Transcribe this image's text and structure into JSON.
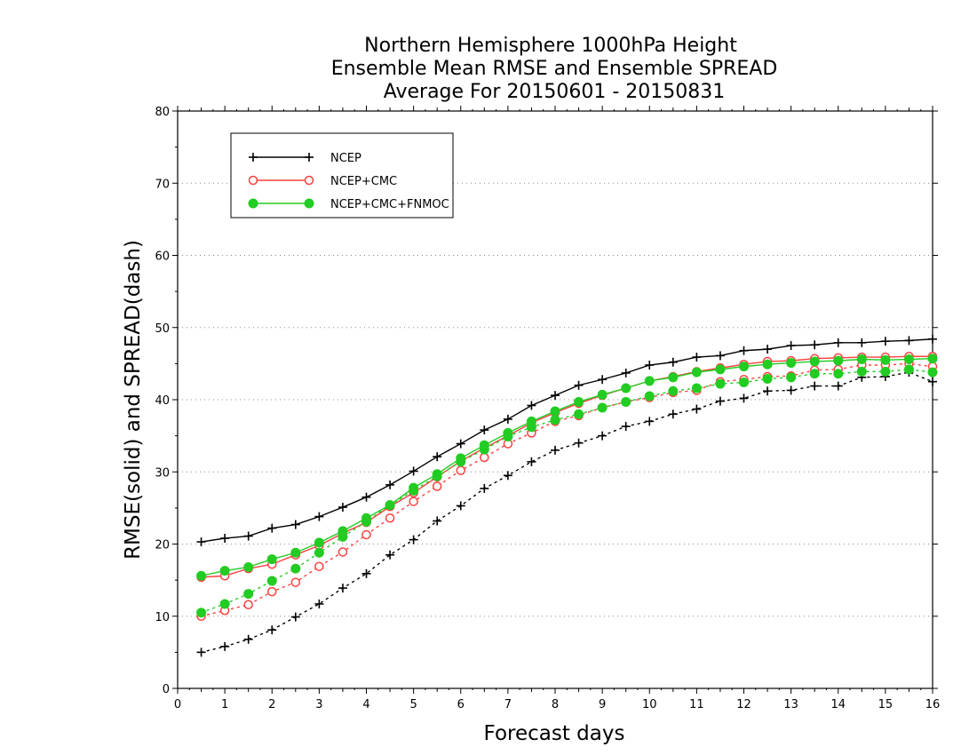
{
  "chart_data": {
    "type": "line",
    "title": [
      "Northern Hemisphere 1000hPa Height",
      "Ensemble Mean RMSE and Ensemble SPREAD",
      "Average For 20150601 - 20150831"
    ],
    "xlabel": "Forecast days",
    "ylabel": "RMSE(solid) and SPREAD(dash)",
    "xlim": [
      0,
      16
    ],
    "ylim": [
      0,
      80
    ],
    "xticks": [
      "0",
      "1",
      "2",
      "3",
      "4",
      "5",
      "6",
      "7",
      "8",
      "9",
      "10",
      "11",
      "12",
      "13",
      "14",
      "15",
      "16"
    ],
    "yticks": [
      "0",
      "10",
      "20",
      "30",
      "40",
      "50",
      "60",
      "70",
      "80"
    ],
    "grid": "horizontal dotted",
    "legend_position": "top-left",
    "x": [
      0.5,
      1,
      1.5,
      2,
      2.5,
      3,
      3.5,
      4,
      4.5,
      5,
      5.5,
      6,
      6.5,
      7,
      7.5,
      8,
      8.5,
      9,
      9.5,
      10,
      10.5,
      11,
      11.5,
      12,
      12.5,
      13,
      13.5,
      14,
      14.5,
      15,
      15.5,
      16
    ],
    "series": [
      {
        "name": "NCEP",
        "color": "#000000",
        "marker": "plus",
        "rmse": [
          20.3,
          20.8,
          21.1,
          22.2,
          22.7,
          23.8,
          25.1,
          26.5,
          28.2,
          30.1,
          32.1,
          33.9,
          35.8,
          37.3,
          39.2,
          40.6,
          42.0,
          42.8,
          43.7,
          44.8,
          45.2,
          45.9,
          46.1,
          46.8,
          47.0,
          47.5,
          47.6,
          47.9,
          47.9,
          48.1,
          48.2,
          48.4
        ],
        "spread": [
          5.0,
          5.8,
          6.8,
          8.1,
          9.9,
          11.7,
          13.9,
          15.9,
          18.5,
          20.6,
          23.2,
          25.3,
          27.7,
          29.5,
          31.4,
          33.0,
          34.0,
          35.0,
          36.3,
          37.0,
          38.0,
          38.7,
          39.8,
          40.2,
          41.2,
          41.3,
          41.9,
          41.9,
          43.1,
          43.2,
          43.8,
          42.5
        ]
      },
      {
        "name": "NCEP+CMC",
        "color": "#ff4040",
        "marker": "open-circle",
        "rmse": [
          15.4,
          15.6,
          16.6,
          17.2,
          18.5,
          19.8,
          21.5,
          23.0,
          25.2,
          27.1,
          29.3,
          31.5,
          33.3,
          35.0,
          36.8,
          38.2,
          39.5,
          40.6,
          41.6,
          42.6,
          43.2,
          43.9,
          44.4,
          44.9,
          45.3,
          45.4,
          45.7,
          45.8,
          45.9,
          45.9,
          46.0,
          46.0
        ],
        "spread": [
          10.0,
          10.8,
          11.6,
          13.4,
          14.7,
          16.9,
          18.9,
          21.3,
          23.6,
          25.9,
          28.0,
          30.2,
          32.0,
          33.9,
          35.4,
          37.0,
          37.8,
          38.9,
          39.7,
          40.3,
          41.0,
          41.3,
          42.5,
          42.8,
          43.2,
          43.3,
          44.1,
          44.2,
          44.8,
          44.8,
          45.0,
          44.6
        ]
      },
      {
        "name": "NCEP+CMC+FNMOC",
        "color": "#22cc22",
        "marker": "filled-circle",
        "rmse": [
          15.6,
          16.3,
          16.8,
          17.9,
          18.8,
          20.2,
          21.8,
          23.6,
          25.4,
          27.8,
          29.7,
          31.9,
          33.7,
          35.4,
          37.0,
          38.4,
          39.7,
          40.7,
          41.6,
          42.6,
          43.1,
          43.8,
          44.2,
          44.6,
          44.9,
          45.1,
          45.3,
          45.4,
          45.6,
          45.5,
          45.6,
          45.7
        ],
        "spread": [
          10.5,
          11.7,
          13.1,
          14.9,
          16.6,
          18.8,
          21.0,
          23.1,
          25.4,
          27.4,
          29.4,
          31.4,
          33.1,
          34.9,
          36.2,
          37.2,
          38.0,
          38.9,
          39.7,
          40.5,
          41.2,
          41.6,
          42.2,
          42.4,
          42.9,
          43.1,
          43.6,
          43.6,
          43.9,
          43.9,
          44.2,
          43.8
        ]
      }
    ]
  }
}
